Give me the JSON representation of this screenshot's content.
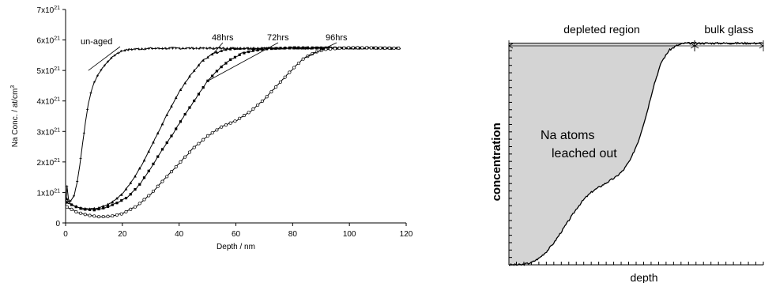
{
  "chart_data": [
    {
      "type": "line",
      "title": "",
      "xlabel": "Depth / nm",
      "ylabel": "Na Conc. / at/cm",
      "ylabel_superscript": "3",
      "xlim": [
        0,
        120
      ],
      "ylim": [
        0,
        7
      ],
      "y_multiplier": "x10",
      "y_exponent": "21",
      "grid": false,
      "x_ticks": [
        "0",
        "20",
        "40",
        "60",
        "80",
        "100",
        "120"
      ],
      "y_ticks": [
        "0",
        "1",
        "2",
        "3",
        "4",
        "5",
        "6",
        "7"
      ],
      "series": [
        {
          "name": "un-aged",
          "marker": "plus",
          "points": [
            [
              0,
              0.5
            ],
            [
              0.5,
              1.2
            ],
            [
              1,
              0.8
            ],
            [
              1.5,
              0.7
            ],
            [
              2,
              0.75
            ],
            [
              3,
              0.9
            ],
            [
              4,
              1.3
            ],
            [
              5,
              1.9
            ],
            [
              6,
              2.6
            ],
            [
              7,
              3.3
            ],
            [
              8,
              3.9
            ],
            [
              9,
              4.3
            ],
            [
              10,
              4.6
            ],
            [
              12,
              4.95
            ],
            [
              14,
              5.2
            ],
            [
              16,
              5.4
            ],
            [
              18,
              5.55
            ],
            [
              20,
              5.65
            ],
            [
              24,
              5.7
            ],
            [
              30,
              5.72
            ],
            [
              40,
              5.73
            ],
            [
              60,
              5.73
            ],
            [
              80,
              5.73
            ],
            [
              100,
              5.73
            ],
            [
              118,
              5.73
            ]
          ]
        },
        {
          "name": "48hrs",
          "marker": "triangle",
          "points": [
            [
              0,
              0.85
            ],
            [
              2,
              0.6
            ],
            [
              5,
              0.5
            ],
            [
              8,
              0.45
            ],
            [
              12,
              0.5
            ],
            [
              16,
              0.65
            ],
            [
              20,
              0.95
            ],
            [
              24,
              1.45
            ],
            [
              28,
              2.1
            ],
            [
              32,
              2.85
            ],
            [
              36,
              3.6
            ],
            [
              40,
              4.3
            ],
            [
              44,
              4.85
            ],
            [
              48,
              5.3
            ],
            [
              52,
              5.55
            ],
            [
              56,
              5.68
            ],
            [
              60,
              5.72
            ],
            [
              70,
              5.73
            ],
            [
              80,
              5.73
            ],
            [
              100,
              5.73
            ],
            [
              118,
              5.73
            ]
          ]
        },
        {
          "name": "72hrs",
          "marker": "filled-square",
          "points": [
            [
              0,
              0.7
            ],
            [
              3,
              0.55
            ],
            [
              6,
              0.45
            ],
            [
              10,
              0.42
            ],
            [
              14,
              0.5
            ],
            [
              18,
              0.65
            ],
            [
              22,
              0.85
            ],
            [
              26,
              1.25
            ],
            [
              30,
              1.8
            ],
            [
              34,
              2.4
            ],
            [
              38,
              2.95
            ],
            [
              42,
              3.55
            ],
            [
              46,
              4.1
            ],
            [
              50,
              4.65
            ],
            [
              54,
              5.05
            ],
            [
              58,
              5.35
            ],
            [
              62,
              5.55
            ],
            [
              66,
              5.65
            ],
            [
              70,
              5.7
            ],
            [
              75,
              5.73
            ],
            [
              80,
              5.75
            ],
            [
              100,
              5.74
            ],
            [
              118,
              5.73
            ]
          ]
        },
        {
          "name": "96hrs",
          "marker": "open-circle",
          "points": [
            [
              0,
              0.55
            ],
            [
              4,
              0.35
            ],
            [
              8,
              0.25
            ],
            [
              12,
              0.2
            ],
            [
              16,
              0.22
            ],
            [
              20,
              0.3
            ],
            [
              25,
              0.55
            ],
            [
              30,
              0.95
            ],
            [
              35,
              1.45
            ],
            [
              40,
              1.95
            ],
            [
              45,
              2.45
            ],
            [
              50,
              2.85
            ],
            [
              55,
              3.15
            ],
            [
              60,
              3.35
            ],
            [
              65,
              3.65
            ],
            [
              70,
              4.05
            ],
            [
              75,
              4.55
            ],
            [
              80,
              5.05
            ],
            [
              84,
              5.4
            ],
            [
              88,
              5.6
            ],
            [
              92,
              5.7
            ],
            [
              100,
              5.75
            ],
            [
              110,
              5.74
            ],
            [
              118,
              5.73
            ]
          ]
        }
      ],
      "annotations": [
        {
          "text": "un-aged",
          "series": "un-aged"
        },
        {
          "text": "48hrs",
          "series": "48hrs"
        },
        {
          "text": "72hrs",
          "series": "72hrs"
        },
        {
          "text": "96hrs",
          "series": "96hrs"
        }
      ]
    },
    {
      "type": "area",
      "title": "",
      "xlabel": "depth",
      "ylabel": "concentration",
      "xlim": [
        0,
        100
      ],
      "ylim": [
        0,
        100
      ],
      "grid": false,
      "fill_color": "#d4d4d4",
      "regions": [
        {
          "text": "depleted region",
          "x_start": 0,
          "x_end": 73
        },
        {
          "text": "bulk glass",
          "x_start": 73,
          "x_end": 100
        }
      ],
      "fill_label": [
        "Na atoms",
        "leached out"
      ],
      "curve": {
        "x": [
          0,
          5,
          9,
          12,
          15,
          18,
          21,
          24,
          27,
          30,
          33,
          36,
          39,
          42,
          45,
          48,
          51,
          54,
          57,
          60,
          63,
          66,
          69,
          72,
          75,
          80,
          85,
          90,
          95,
          100
        ],
        "y": [
          0,
          0,
          1,
          3,
          6,
          10,
          15,
          20,
          25,
          29,
          32,
          34,
          36,
          38,
          41,
          46,
          54,
          65,
          78,
          88,
          93,
          95,
          96,
          96,
          96,
          96,
          96,
          96,
          96,
          96
        ]
      },
      "plateau_y": 96,
      "x_tick_count": 34,
      "y_tick_count": 30
    }
  ]
}
